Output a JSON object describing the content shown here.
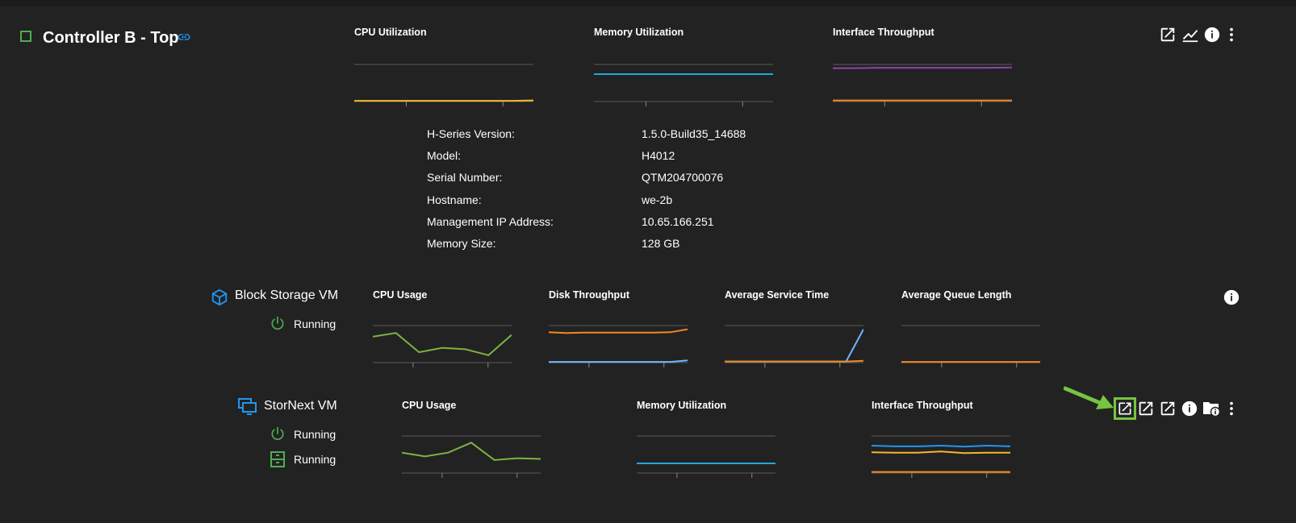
{
  "controller": {
    "title": "Controller B - Top",
    "charts": [
      {
        "title": "CPU Utilization"
      },
      {
        "title": "Memory Utilization"
      },
      {
        "title": "Interface Throughput"
      }
    ],
    "info": [
      {
        "label": "H-Series Version:",
        "value": "1.5.0-Build35_14688"
      },
      {
        "label": "Model:",
        "value": "H4012"
      },
      {
        "label": "Serial Number:",
        "value": "QTM204700076"
      },
      {
        "label": "Hostname:",
        "value": "we-2b"
      },
      {
        "label": "Management IP Address:",
        "value": "10.65.166.251"
      },
      {
        "label": "Memory Size:",
        "value": "128 GB"
      }
    ],
    "actions": [
      "open-external-icon",
      "chart-line-icon",
      "info-icon",
      "more-vert-icon"
    ]
  },
  "block_storage_vm": {
    "name": "Block Storage VM",
    "status": "Running",
    "charts": [
      {
        "title": "CPU Usage"
      },
      {
        "title": "Disk Throughput"
      },
      {
        "title": "Average Service Time"
      },
      {
        "title": "Average Queue Length"
      }
    ],
    "actions": [
      "info-icon"
    ]
  },
  "stornext_vm": {
    "name": "StorNext VM",
    "statuses": [
      "Running",
      "Running"
    ],
    "charts": [
      {
        "title": "CPU Usage"
      },
      {
        "title": "Memory Utilization"
      },
      {
        "title": "Interface Throughput"
      }
    ],
    "actions": [
      "open-external-icon",
      "open-external-icon",
      "open-external-icon",
      "info-icon",
      "folder-info-icon",
      "more-vert-icon"
    ]
  },
  "colors": {
    "green": "#4caf50",
    "link_blue": "#2196f3",
    "highlight": "#76c442",
    "yellow": "#f5b82e",
    "cyan": "#1fa8e0",
    "purple": "#8e44ad",
    "orange": "#f08a24",
    "light_blue": "#6fb6ff",
    "olive_green": "#7cb342"
  },
  "chart_data": [
    {
      "type": "line",
      "title": "CPU Utilization",
      "series": [
        {
          "values": [
            2,
            2,
            2,
            2,
            2,
            2,
            2,
            2,
            3
          ]
        }
      ]
    },
    {
      "type": "line",
      "title": "Memory Utilization",
      "series": [
        {
          "values": [
            74,
            74,
            74,
            74,
            74,
            74,
            74,
            74,
            74
          ]
        }
      ]
    },
    {
      "type": "line",
      "title": "Interface Throughput",
      "series": [
        {
          "values": [
            90,
            90,
            91,
            91,
            91,
            91,
            91,
            91,
            92
          ]
        },
        {
          "values": [
            3,
            3,
            3,
            3,
            3,
            3,
            3,
            3,
            3
          ]
        }
      ]
    },
    {
      "type": "line",
      "title": "CPU Usage",
      "series": [
        {
          "values": [
            70,
            80,
            28,
            40,
            36,
            20,
            75
          ]
        }
      ]
    },
    {
      "type": "line",
      "title": "Disk Throughput",
      "series": [
        {
          "values": [
            82,
            80,
            81,
            81,
            81,
            81,
            81,
            82,
            90
          ]
        },
        {
          "values": [
            2,
            2,
            2,
            2,
            2,
            2,
            2,
            2,
            6
          ]
        }
      ]
    },
    {
      "type": "line",
      "title": "Average Service Time",
      "series": [
        {
          "values": [
            3,
            3,
            3,
            3,
            3,
            3,
            3,
            3,
            90
          ]
        },
        {
          "values": [
            3,
            3,
            3,
            3,
            3,
            3,
            3,
            3,
            5
          ]
        }
      ]
    },
    {
      "type": "line",
      "title": "Average Queue Length",
      "series": [
        {
          "values": [
            2,
            2,
            2,
            2,
            2,
            2,
            2,
            2,
            2
          ]
        }
      ]
    },
    {
      "type": "line",
      "title": "CPU Usage",
      "series": [
        {
          "values": [
            55,
            45,
            55,
            82,
            35,
            40,
            38
          ]
        }
      ]
    },
    {
      "type": "line",
      "title": "Memory Utilization",
      "series": [
        {
          "values": [
            26,
            26,
            26,
            26,
            26,
            26,
            26,
            26,
            26
          ]
        }
      ]
    },
    {
      "type": "line",
      "title": "Interface Throughput",
      "series": [
        {
          "values": [
            74,
            72,
            72,
            74,
            71,
            74,
            72
          ]
        },
        {
          "values": [
            56,
            55,
            55,
            58,
            54,
            55,
            55
          ]
        },
        {
          "values": [
            3,
            3,
            3,
            3,
            3,
            3,
            3
          ]
        }
      ]
    }
  ]
}
